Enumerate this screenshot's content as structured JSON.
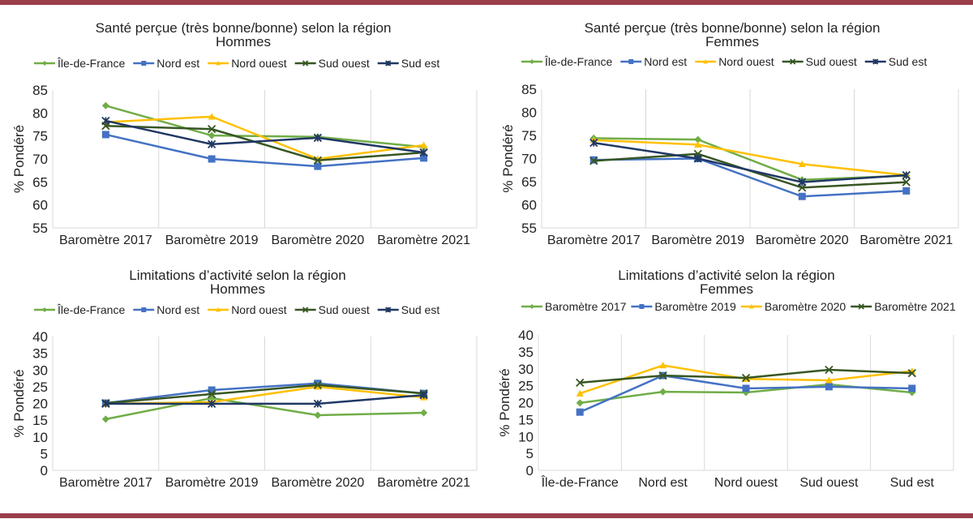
{
  "colors": {
    "frame": "#9a3e4a",
    "grid": "#d9d9d9"
  },
  "chart_data": [
    {
      "type": "line",
      "title": [
        "Santé perçue (très bonne/bonne) selon la région",
        "Hommes"
      ],
      "ylabel": "% Pondéré",
      "ylim": [
        55,
        85
      ],
      "yticks": [
        55,
        60,
        65,
        70,
        75,
        80,
        85
      ],
      "categories": [
        "Baromètre 2017",
        "Baromètre 2019",
        "Baromètre 2020",
        "Baromètre 2021"
      ],
      "legend": "top",
      "grid": "vertical",
      "series": [
        {
          "name": "Île-de-France",
          "color": "#70ad47",
          "marker": "diamond",
          "values": [
            81.6,
            75.1,
            74.8,
            72.6
          ]
        },
        {
          "name": "Nord est",
          "color": "#4472c4",
          "marker": "square",
          "values": [
            75.3,
            70.0,
            68.4,
            70.2
          ]
        },
        {
          "name": "Nord ouest",
          "color": "#ffc000",
          "marker": "triangle",
          "values": [
            78.0,
            79.2,
            70.0,
            73.0
          ]
        },
        {
          "name": "Sud ouest",
          "color": "#375623",
          "marker": "x",
          "values": [
            77.2,
            76.5,
            69.7,
            71.4
          ]
        },
        {
          "name": "Sud est",
          "color": "#203864",
          "marker": "asterisk",
          "values": [
            78.3,
            73.2,
            74.6,
            71.4
          ]
        }
      ]
    },
    {
      "type": "line",
      "title": [
        "Santé perçue (très bonne/bonne) selon la région",
        "Femmes"
      ],
      "ylabel": "% Pondéré",
      "ylim": [
        55,
        85
      ],
      "yticks": [
        55,
        60,
        65,
        70,
        75,
        80,
        85
      ],
      "categories": [
        "Baromètre 2017",
        "Baromètre 2019",
        "Baromètre 2020",
        "Baromètre 2021"
      ],
      "legend": "top",
      "grid": "vertical",
      "series": [
        {
          "name": "Île-de-France",
          "color": "#70ad47",
          "marker": "diamond",
          "values": [
            74.4,
            74.1,
            65.4,
            66.3
          ]
        },
        {
          "name": "Nord est",
          "color": "#4472c4",
          "marker": "square",
          "values": [
            69.7,
            70.0,
            61.8,
            63.0
          ]
        },
        {
          "name": "Nord ouest",
          "color": "#ffc000",
          "marker": "triangle",
          "values": [
            74.0,
            73.0,
            68.8,
            66.4
          ]
        },
        {
          "name": "Sud ouest",
          "color": "#375623",
          "marker": "x",
          "values": [
            69.5,
            71.0,
            63.7,
            64.9
          ]
        },
        {
          "name": "Sud est",
          "color": "#203864",
          "marker": "asterisk",
          "values": [
            73.4,
            70.0,
            64.9,
            66.4
          ]
        }
      ]
    },
    {
      "type": "line",
      "title": [
        "Limitations d’activité selon la région",
        "Hommes"
      ],
      "ylabel": "% Pondéré",
      "ylim": [
        0,
        40
      ],
      "yticks": [
        0,
        5,
        10,
        15,
        20,
        25,
        30,
        35,
        40
      ],
      "categories": [
        "Baromètre 2017",
        "Baromètre 2019",
        "Baromètre 2020",
        "Baromètre 2021"
      ],
      "legend": "top",
      "grid": "vertical",
      "series": [
        {
          "name": "Île-de-France",
          "color": "#70ad47",
          "marker": "diamond",
          "values": [
            15.3,
            21.6,
            16.5,
            17.2
          ]
        },
        {
          "name": "Nord est",
          "color": "#4472c4",
          "marker": "square",
          "values": [
            20.1,
            24.0,
            26.0,
            23.0
          ]
        },
        {
          "name": "Nord ouest",
          "color": "#ffc000",
          "marker": "triangle",
          "values": [
            19.9,
            20.4,
            25.0,
            21.8
          ]
        },
        {
          "name": "Sud ouest",
          "color": "#375623",
          "marker": "x",
          "values": [
            20.1,
            22.8,
            25.5,
            23.0
          ]
        },
        {
          "name": "Sud est",
          "color": "#203864",
          "marker": "asterisk",
          "values": [
            19.9,
            19.9,
            19.9,
            22.5
          ]
        }
      ]
    },
    {
      "type": "line",
      "title": [
        "Limitations d’activité selon la région",
        "Femmes"
      ],
      "ylabel": "% Pondéré",
      "ylim": [
        0,
        40
      ],
      "yticks": [
        0,
        5,
        10,
        15,
        20,
        25,
        30,
        35,
        40
      ],
      "categories": [
        "Île-de-France",
        "Nord est",
        "Nord ouest",
        "Sud ouest",
        "Sud est"
      ],
      "legend": "top",
      "grid": "vertical",
      "series": [
        {
          "name": "Baromètre 2017",
          "color": "#70ad47",
          "marker": "diamond",
          "values": [
            19.9,
            23.2,
            23.0,
            25.4,
            23.0
          ]
        },
        {
          "name": "Baromètre 2019",
          "color": "#4472c4",
          "marker": "square",
          "values": [
            17.2,
            28.0,
            24.2,
            24.7,
            24.2
          ]
        },
        {
          "name": "Baromètre 2020",
          "color": "#ffc000",
          "marker": "triangle",
          "values": [
            22.7,
            31.0,
            27.0,
            26.6,
            29.3
          ]
        },
        {
          "name": "Baromètre 2021",
          "color": "#375623",
          "marker": "x",
          "values": [
            25.9,
            28.0,
            27.3,
            29.7,
            28.7
          ]
        }
      ]
    }
  ]
}
